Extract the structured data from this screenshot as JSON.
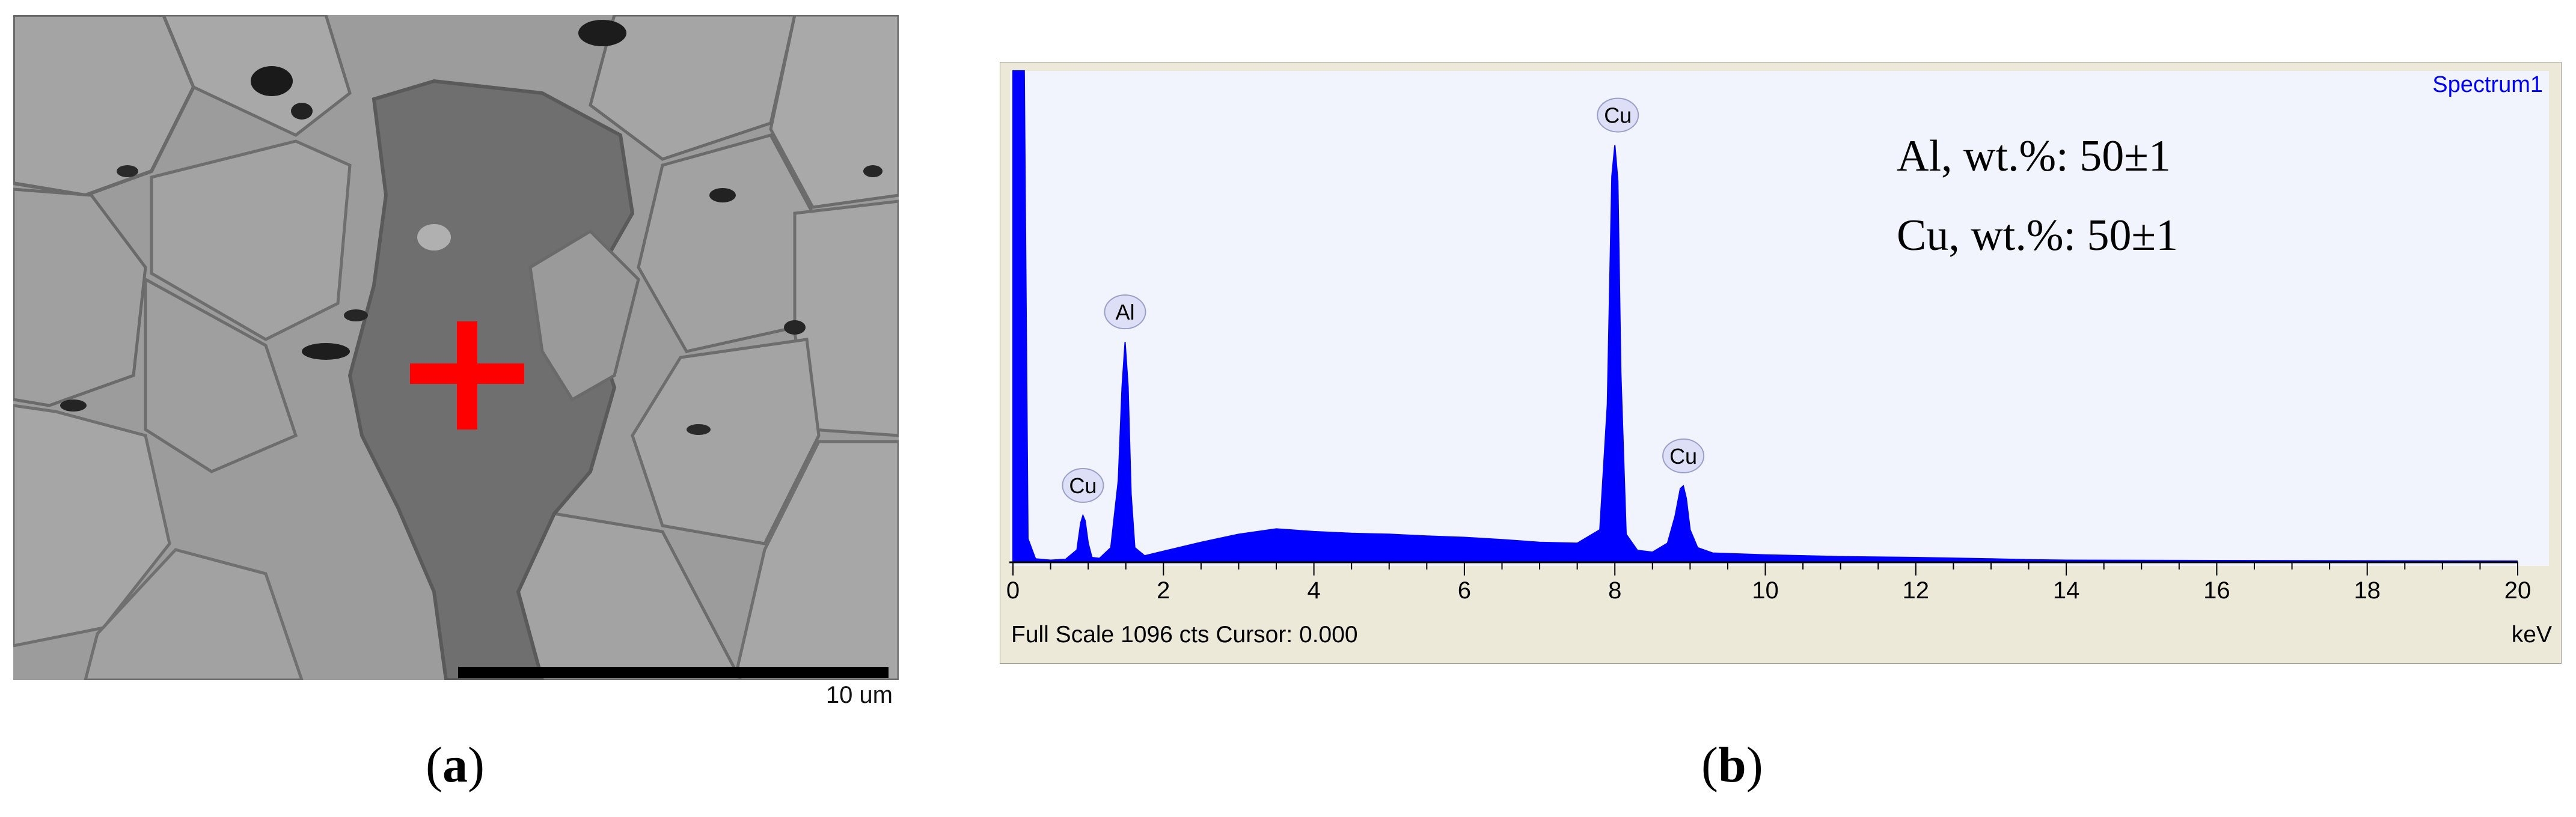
{
  "figure": {
    "panel_a": {
      "caption_letter": "a",
      "scale_bar_label": "10 um",
      "marker_color": "#ff0000"
    },
    "panel_b": {
      "caption_letter": "b"
    }
  },
  "chart_data": {
    "type": "line",
    "series": [
      {
        "name": "Spectrum1",
        "color": "#0000ff",
        "x": [
          0.0,
          0.02,
          0.05,
          0.1,
          0.15,
          0.2,
          0.3,
          0.5,
          0.7,
          0.85,
          0.9,
          0.93,
          0.96,
          1.0,
          1.05,
          1.15,
          1.3,
          1.4,
          1.45,
          1.49,
          1.53,
          1.57,
          1.62,
          1.75,
          2.0,
          2.5,
          3.0,
          3.5,
          4.0,
          4.5,
          5.0,
          5.5,
          6.0,
          6.5,
          7.0,
          7.5,
          7.8,
          7.9,
          7.96,
          8.0,
          8.04,
          8.08,
          8.15,
          8.3,
          8.5,
          8.7,
          8.8,
          8.87,
          8.91,
          8.95,
          9.0,
          9.1,
          9.3,
          10.0,
          11.0,
          12.0,
          13.0,
          13.5,
          14.0,
          20.0
        ],
        "y": [
          1096,
          1096,
          1096,
          1096,
          1096,
          50,
          5,
          2,
          4,
          25,
          85,
          102,
          90,
          40,
          8,
          6,
          30,
          180,
          390,
          490,
          390,
          150,
          30,
          12,
          22,
          42,
          60,
          72,
          66,
          62,
          60,
          56,
          53,
          48,
          42,
          40,
          70,
          350,
          860,
          930,
          850,
          420,
          60,
          24,
          20,
          40,
          100,
          162,
          168,
          140,
          70,
          30,
          18,
          14,
          10,
          8,
          5,
          3,
          2,
          0
        ]
      }
    ],
    "peak_labels": [
      {
        "label": "Cu",
        "x": 0.93,
        "y": 102
      },
      {
        "label": "Al",
        "x": 1.49,
        "y": 490
      },
      {
        "label": "Cu",
        "x": 8.04,
        "y": 930
      },
      {
        "label": "Cu",
        "x": 8.91,
        "y": 168
      }
    ],
    "xlim": [
      0,
      20
    ],
    "ylim": [
      0,
      1096
    ],
    "x_ticks": [
      0,
      2,
      4,
      6,
      8,
      10,
      12,
      14,
      16,
      18,
      20
    ],
    "xlabel": "keV",
    "grid": false,
    "legend": "top-right",
    "full_scale_text": "Full Scale 1096 cts Cursor: 0.000",
    "annotations": [
      "Al, wt.%: 50±1",
      "Cu, wt.%: 50±1"
    ],
    "colors": {
      "plot_background": "#f1f3fd",
      "frame": "#ece9d8",
      "spectrum": "#0000ff"
    }
  }
}
